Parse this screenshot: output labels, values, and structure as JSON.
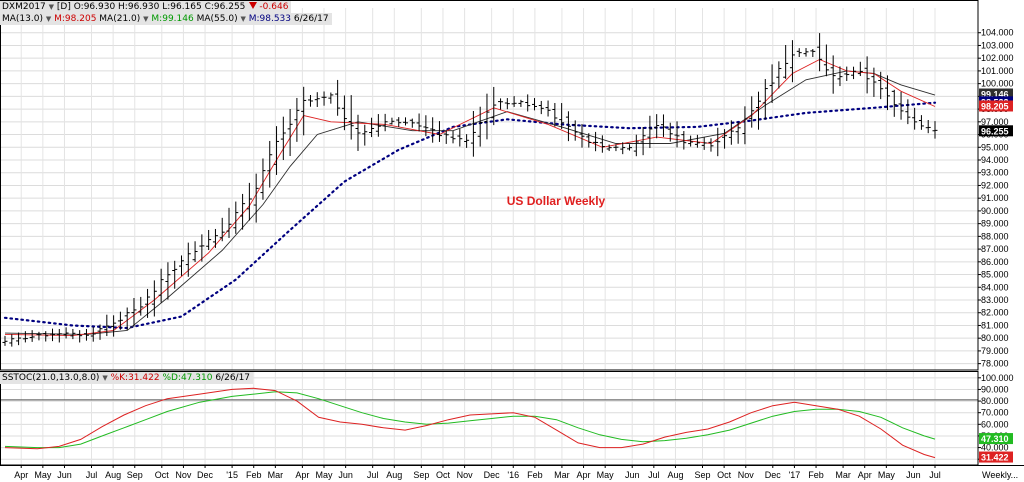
{
  "header": {
    "symbol": "DXM2017",
    "period": "[D]",
    "ohlc": "O:96.930 H:96.930 L:96.165 C:96.255",
    "change": "-0.646",
    "ma13_label": "MA(13.0)",
    "ma13_value": "M:98.205",
    "ma21_label": "MA(21.0)",
    "ma21_value": "M:99.146",
    "ma55_label": "MA(55.0)",
    "ma55_value": "M:98.533",
    "date": "6/26/17"
  },
  "oscillator": {
    "label": "SSTOC(21.0,13.0,8.0)",
    "k_label": "%K:31.422",
    "d_label": "%D:47.310",
    "date": "6/26/17"
  },
  "colors": {
    "ma13": "#dd2222",
    "ma21": "#2e2e2e",
    "ma55": "#000080",
    "k": "#dd2222",
    "d": "#22bb22",
    "annotation": "#e02020"
  },
  "chart_data": [
    {
      "type": "bar",
      "annotation": "US Dollar Weekly",
      "y_ticks": [
        "104.000",
        "103.000",
        "102.000",
        "101.000",
        "100.000",
        "99.000",
        "98.000",
        "97.000",
        "96.000",
        "95.000",
        "94.000",
        "93.000",
        "92.000",
        "91.000",
        "90.000",
        "89.000",
        "88.000",
        "87.000",
        "86.000",
        "85.000",
        "84.000",
        "83.000",
        "82.000",
        "81.000",
        "80.000",
        "79.000",
        "78.000"
      ],
      "ylim": [
        77.5,
        105
      ],
      "last_value_labels": [
        {
          "value": 99.146,
          "text": "99.146",
          "color": "#2e2e2e"
        },
        {
          "value": 98.533,
          "text": "98.533",
          "color": "#000080"
        },
        {
          "value": 98.205,
          "text": "98.205",
          "color": "#dd2222"
        },
        {
          "value": 96.255,
          "text": "96.255",
          "color": "#000000"
        }
      ],
      "price_anchors": [
        [
          0,
          79.8
        ],
        [
          4,
          80.1
        ],
        [
          8,
          80.4
        ],
        [
          12,
          80.2
        ],
        [
          16,
          81.2
        ],
        [
          20,
          82.5
        ],
        [
          24,
          85.0
        ],
        [
          28,
          87.0
        ],
        [
          32,
          88.5
        ],
        [
          36,
          91.0
        ],
        [
          40,
          95.2
        ],
        [
          44,
          98.5
        ],
        [
          48,
          99.0
        ],
        [
          52,
          96.0
        ],
        [
          56,
          97.0
        ],
        [
          60,
          97.0
        ],
        [
          64,
          96.0
        ],
        [
          68,
          95.5
        ],
        [
          72,
          98.5
        ],
        [
          76,
          98.5
        ],
        [
          80,
          98.0
        ],
        [
          84,
          96.0
        ],
        [
          88,
          95.0
        ],
        [
          92,
          95.0
        ],
        [
          96,
          96.8
        ],
        [
          100,
          95.5
        ],
        [
          104,
          95.2
        ],
        [
          108,
          96.5
        ],
        [
          112,
          99.5
        ],
        [
          116,
          102.5
        ],
        [
          119,
          102.5
        ],
        [
          122,
          100.5
        ],
        [
          126,
          101.0
        ],
        [
          128,
          100.0
        ],
        [
          131,
          98.5
        ],
        [
          134,
          97.0
        ],
        [
          137,
          96.3
        ]
      ],
      "ma13": [
        [
          0,
          80.3
        ],
        [
          10,
          80.2
        ],
        [
          16,
          80.6
        ],
        [
          22,
          83.0
        ],
        [
          30,
          86.7
        ],
        [
          36,
          90.4
        ],
        [
          40,
          94.0
        ],
        [
          44,
          97.5
        ],
        [
          48,
          97.0
        ],
        [
          56,
          96.8
        ],
        [
          64,
          96.0
        ],
        [
          72,
          98.1
        ],
        [
          80,
          96.8
        ],
        [
          88,
          95.0
        ],
        [
          96,
          95.8
        ],
        [
          104,
          95.3
        ],
        [
          110,
          97.5
        ],
        [
          116,
          100.8
        ],
        [
          120,
          101.9
        ],
        [
          124,
          101.0
        ],
        [
          128,
          100.8
        ],
        [
          132,
          99.4
        ],
        [
          137,
          98.2
        ]
      ],
      "ma21": [
        [
          0,
          80.4
        ],
        [
          12,
          80.3
        ],
        [
          18,
          80.6
        ],
        [
          24,
          83.2
        ],
        [
          32,
          86.9
        ],
        [
          38,
          90.5
        ],
        [
          42,
          93.5
        ],
        [
          46,
          96.0
        ],
        [
          52,
          97.0
        ],
        [
          60,
          96.3
        ],
        [
          66,
          96.3
        ],
        [
          74,
          97.8
        ],
        [
          82,
          96.6
        ],
        [
          90,
          95.3
        ],
        [
          98,
          95.3
        ],
        [
          106,
          96.1
        ],
        [
          112,
          98.3
        ],
        [
          118,
          100.3
        ],
        [
          124,
          101.0
        ],
        [
          128,
          100.8
        ],
        [
          132,
          99.9
        ],
        [
          137,
          99.1
        ]
      ],
      "ma55": [
        [
          0,
          81.6
        ],
        [
          10,
          81.0
        ],
        [
          18,
          80.8
        ],
        [
          26,
          81.7
        ],
        [
          34,
          84.6
        ],
        [
          42,
          88.5
        ],
        [
          50,
          92.3
        ],
        [
          58,
          94.8
        ],
        [
          66,
          96.6
        ],
        [
          74,
          97.2
        ],
        [
          82,
          96.8
        ],
        [
          92,
          96.5
        ],
        [
          102,
          96.6
        ],
        [
          110,
          97.1
        ],
        [
          118,
          97.7
        ],
        [
          128,
          98.1
        ],
        [
          137,
          98.5
        ]
      ]
    },
    {
      "type": "line",
      "title": "SSTOC(21.0,13.0,8.0)",
      "y_ticks": [
        "100.000",
        "90.000",
        "80.000",
        "70.000",
        "60.000",
        "50.000",
        "40.000",
        "30.000"
      ],
      "ylim": [
        25,
        105
      ],
      "reference_line": 81,
      "last_value_labels": [
        {
          "value": 47.31,
          "text": "47.310",
          "color": "#22bb22"
        },
        {
          "value": 31.422,
          "text": "31.422",
          "color": "#dd2222"
        }
      ],
      "x_ticks": [
        {
          "week": 3,
          "label": "Apr"
        },
        {
          "week": 7,
          "label": "May"
        },
        {
          "week": 11,
          "label": "Jun"
        },
        {
          "week": 16,
          "label": "Jul"
        },
        {
          "week": 20,
          "label": "Aug"
        },
        {
          "week": 24,
          "label": "Sep"
        },
        {
          "week": 29,
          "label": "Oct"
        },
        {
          "week": 33,
          "label": "Nov"
        },
        {
          "week": 37,
          "label": "Dec"
        },
        {
          "week": 42,
          "label": "'15"
        },
        {
          "week": 46,
          "label": "Feb"
        },
        {
          "week": 50,
          "label": "Mar"
        },
        {
          "week": 55,
          "label": "Apr"
        },
        {
          "week": 59,
          "label": "May"
        },
        {
          "week": 63,
          "label": "Jun"
        },
        {
          "week": 68,
          "label": "Jul"
        },
        {
          "week": 72,
          "label": "Aug"
        },
        {
          "week": 77,
          "label": "Sep"
        },
        {
          "week": 81,
          "label": "Oct"
        },
        {
          "week": 85,
          "label": "Nov"
        },
        {
          "week": 90,
          "label": "Dec"
        },
        {
          "week": 94,
          "label": "'16"
        },
        {
          "week": 98,
          "label": "Feb"
        },
        {
          "week": 103,
          "label": "Mar"
        },
        {
          "week": 107,
          "label": "Apr"
        },
        {
          "week": 111,
          "label": "May"
        },
        {
          "week": 116,
          "label": "Jun"
        },
        {
          "week": 120,
          "label": "Jul"
        },
        {
          "week": 124,
          "label": "Aug"
        },
        {
          "week": 129,
          "label": "Sep"
        },
        {
          "week": 133,
          "label": "Oct"
        },
        {
          "week": 137,
          "label": "Nov"
        },
        {
          "week": 142,
          "label": "Dec"
        },
        {
          "week": 146,
          "label": "'17"
        },
        {
          "week": 150,
          "label": "Feb"
        },
        {
          "week": 155,
          "label": "Mar"
        },
        {
          "week": 159,
          "label": "Apr"
        },
        {
          "week": 163,
          "label": "May"
        },
        {
          "week": 168,
          "label": "Jun"
        },
        {
          "week": 172,
          "label": "Jul"
        }
      ],
      "x_extra_label": "Weekly...",
      "k": [
        [
          0,
          40
        ],
        [
          6,
          39
        ],
        [
          10,
          41
        ],
        [
          14,
          47
        ],
        [
          18,
          58
        ],
        [
          22,
          68
        ],
        [
          26,
          76
        ],
        [
          30,
          82
        ],
        [
          36,
          86
        ],
        [
          42,
          90
        ],
        [
          46,
          91
        ],
        [
          50,
          89
        ],
        [
          54,
          80
        ],
        [
          58,
          66
        ],
        [
          62,
          62
        ],
        [
          66,
          60
        ],
        [
          70,
          57
        ],
        [
          74,
          55
        ],
        [
          78,
          59
        ],
        [
          82,
          64
        ],
        [
          86,
          68
        ],
        [
          90,
          69
        ],
        [
          94,
          70
        ],
        [
          98,
          66
        ],
        [
          102,
          55
        ],
        [
          106,
          44
        ],
        [
          110,
          40
        ],
        [
          114,
          40
        ],
        [
          118,
          43
        ],
        [
          122,
          49
        ],
        [
          126,
          53
        ],
        [
          130,
          56
        ],
        [
          134,
          62
        ],
        [
          138,
          70
        ],
        [
          142,
          76
        ],
        [
          146,
          79
        ],
        [
          150,
          76
        ],
        [
          154,
          73
        ],
        [
          158,
          67
        ],
        [
          162,
          56
        ],
        [
          166,
          42
        ],
        [
          170,
          34
        ],
        [
          172,
          31.4
        ]
      ],
      "d": [
        [
          0,
          41
        ],
        [
          6,
          40
        ],
        [
          10,
          40
        ],
        [
          14,
          43
        ],
        [
          18,
          50
        ],
        [
          22,
          57
        ],
        [
          26,
          64
        ],
        [
          30,
          71
        ],
        [
          36,
          79
        ],
        [
          42,
          84
        ],
        [
          46,
          86
        ],
        [
          50,
          88
        ],
        [
          54,
          87
        ],
        [
          58,
          82
        ],
        [
          62,
          76
        ],
        [
          66,
          70
        ],
        [
          70,
          65
        ],
        [
          74,
          62
        ],
        [
          78,
          60
        ],
        [
          82,
          61
        ],
        [
          86,
          63
        ],
        [
          90,
          65
        ],
        [
          94,
          67
        ],
        [
          98,
          67
        ],
        [
          102,
          64
        ],
        [
          106,
          57
        ],
        [
          110,
          51
        ],
        [
          114,
          47
        ],
        [
          118,
          45
        ],
        [
          122,
          46
        ],
        [
          126,
          48
        ],
        [
          130,
          51
        ],
        [
          134,
          55
        ],
        [
          138,
          61
        ],
        [
          142,
          67
        ],
        [
          146,
          71
        ],
        [
          150,
          73
        ],
        [
          154,
          73
        ],
        [
          158,
          71
        ],
        [
          162,
          66
        ],
        [
          166,
          57
        ],
        [
          170,
          50
        ],
        [
          172,
          47.3
        ]
      ]
    }
  ]
}
